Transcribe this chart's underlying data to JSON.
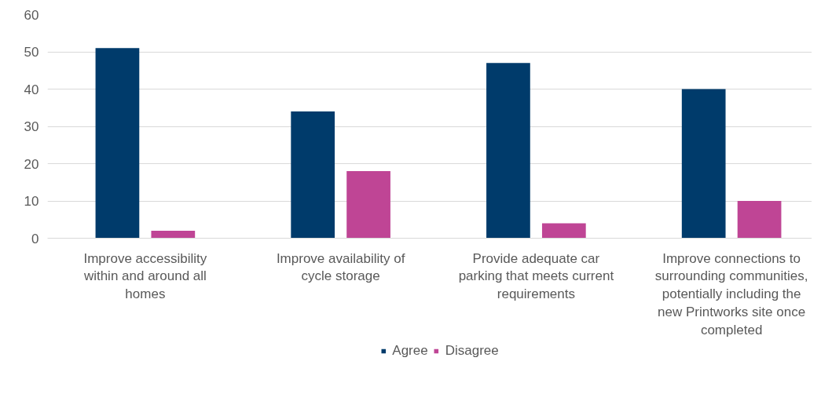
{
  "chart_data": {
    "type": "bar",
    "categories": [
      "Improve accessibility within and around all homes",
      "Improve availability of cycle storage",
      "Provide adequate car parking that meets current requirements",
      "Improve connections to surrounding communities, potentially including the new Printworks site once completed"
    ],
    "series": [
      {
        "name": "Agree",
        "color": "#003b6b",
        "values": [
          51,
          34,
          47,
          40
        ]
      },
      {
        "name": "Disagree",
        "color": "#bf4595",
        "values": [
          2,
          18,
          4,
          10
        ]
      }
    ],
    "ylim": [
      0,
      60
    ],
    "yticks": [
      0,
      10,
      20,
      30,
      40,
      50,
      60
    ],
    "grid": "y",
    "legend": "bottom"
  }
}
